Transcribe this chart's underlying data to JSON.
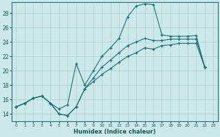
{
  "xlabel": "Humidex (Indice chaleur)",
  "background_color": "#cce8ea",
  "grid_color": "#aacccc",
  "line_color": "#1a6e6e",
  "xlim": [
    -0.5,
    23.5
  ],
  "ylim": [
    13.0,
    29.5
  ],
  "xticks": [
    0,
    1,
    2,
    3,
    4,
    5,
    6,
    7,
    8,
    9,
    10,
    11,
    12,
    13,
    14,
    15,
    16,
    17,
    18,
    19,
    20,
    21,
    22,
    23
  ],
  "yticks": [
    14,
    16,
    18,
    20,
    22,
    24,
    26,
    28
  ],
  "line1_x": [
    0,
    1,
    2,
    3,
    4,
    5,
    6,
    7,
    8,
    9,
    10,
    11,
    12,
    13,
    14,
    15,
    16,
    17,
    18,
    19,
    20,
    21,
    22
  ],
  "line1_y": [
    15.0,
    15.5,
    16.2,
    16.5,
    15.5,
    14.0,
    13.8,
    15.0,
    17.5,
    18.5,
    19.5,
    20.3,
    21.2,
    22.0,
    22.5,
    23.2,
    23.0,
    23.5,
    23.6,
    23.8,
    23.8,
    23.8,
    20.5
  ],
  "line2_x": [
    0,
    1,
    2,
    3,
    4,
    5,
    6,
    7,
    8,
    9,
    10,
    11,
    12,
    13,
    14,
    15,
    16,
    17,
    18,
    19,
    20,
    21,
    22
  ],
  "line2_y": [
    15.0,
    15.5,
    16.2,
    16.5,
    15.5,
    14.7,
    15.3,
    21.0,
    18.0,
    20.0,
    22.0,
    23.2,
    24.5,
    27.5,
    29.0,
    29.3,
    29.2,
    25.0,
    24.8,
    24.8,
    24.8,
    24.9,
    20.5
  ],
  "line3_x": [
    0,
    1,
    2,
    3,
    4,
    5,
    6,
    7,
    8,
    9,
    10,
    11,
    12,
    13,
    14,
    15,
    16,
    17,
    18,
    19,
    20,
    21,
    22
  ],
  "line3_y": [
    15.0,
    15.5,
    16.2,
    16.5,
    15.5,
    14.0,
    13.8,
    15.0,
    17.5,
    19.0,
    20.5,
    21.5,
    22.5,
    23.5,
    24.0,
    24.5,
    24.2,
    24.2,
    24.4,
    24.4,
    24.4,
    24.4,
    20.5
  ]
}
